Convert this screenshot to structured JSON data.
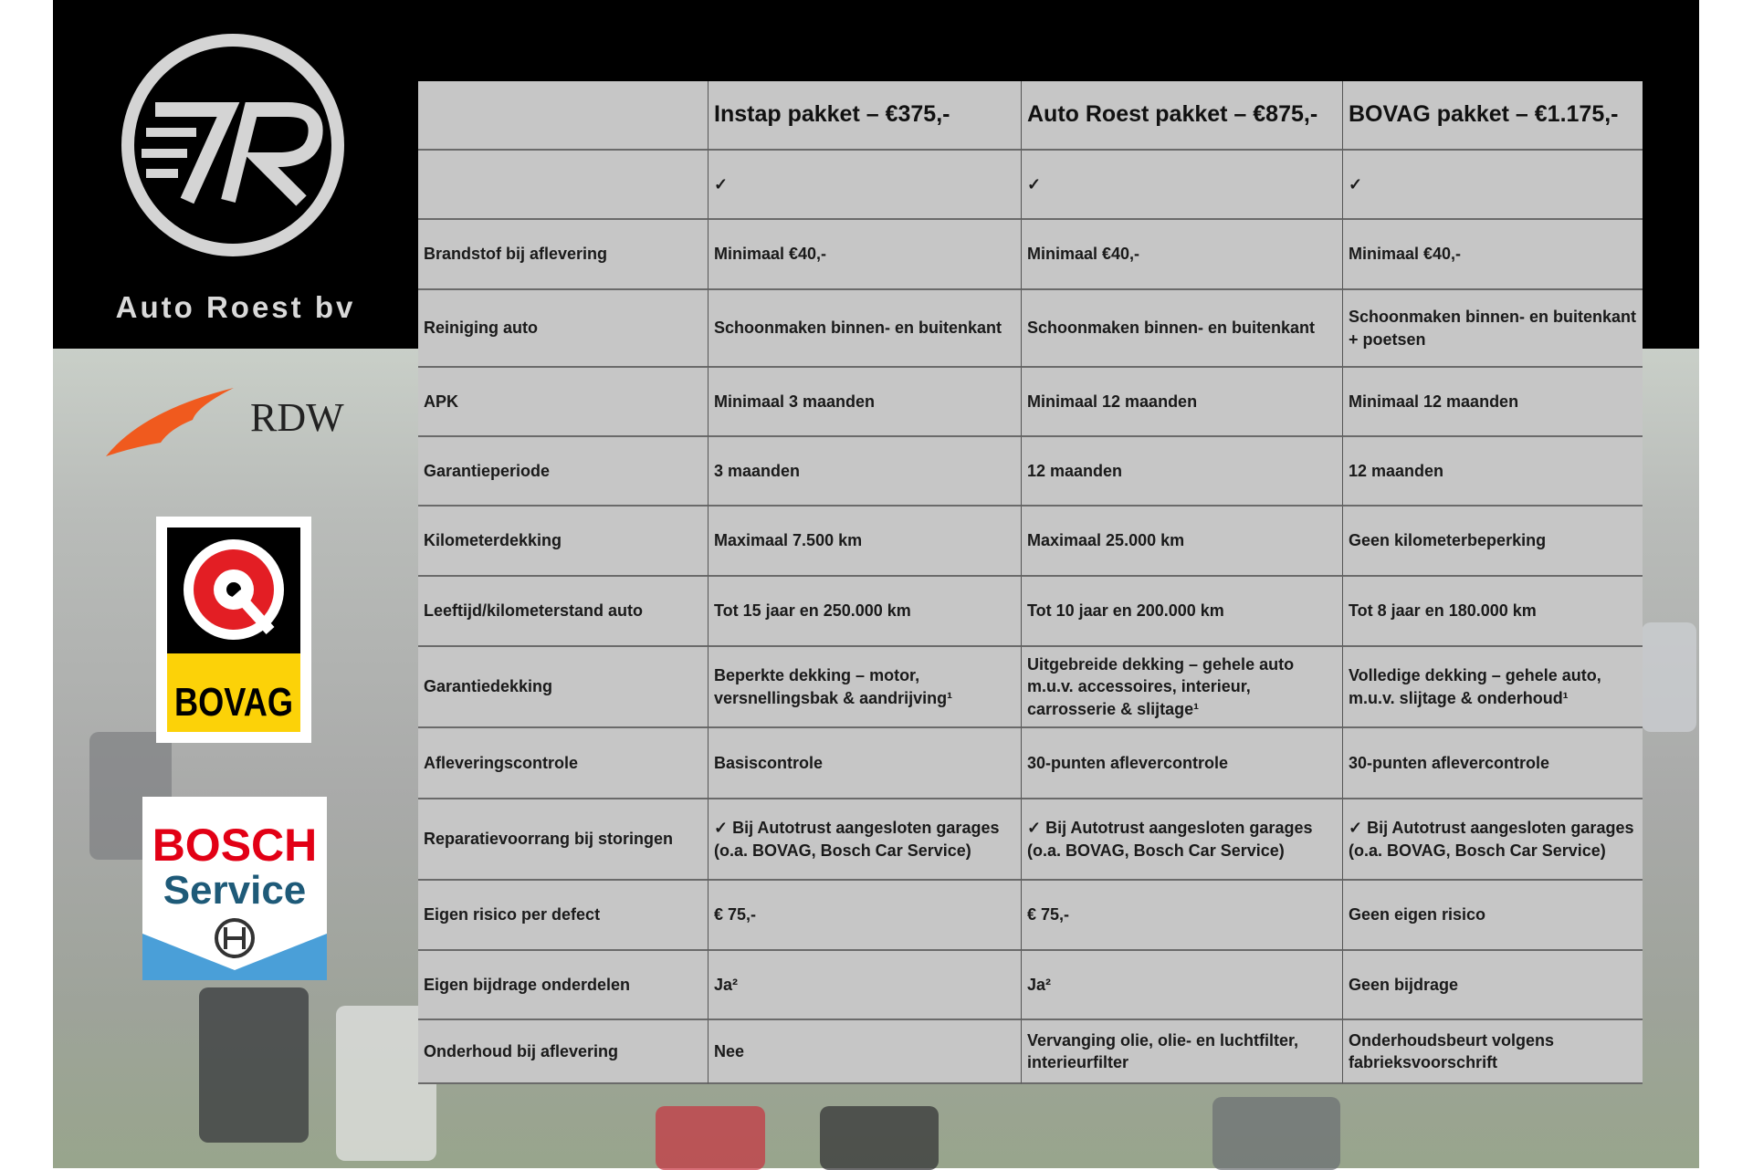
{
  "brand": {
    "name": "Auto Roest bv",
    "logo": "AR-circle-logo"
  },
  "partner_logos": [
    {
      "name": "RDW",
      "text": "RDW",
      "color": "#f05a1e"
    },
    {
      "name": "BOVAG",
      "text": "BOVAG",
      "color": "#fcd208"
    },
    {
      "name": "Bosch Service",
      "text": [
        "BOSCH",
        "Service"
      ],
      "colors": [
        "#e20015",
        "#1e5a78",
        "#4a9fd8"
      ]
    }
  ],
  "table": {
    "headers": [
      "",
      "Instap pakket – €375,-",
      "Auto Roest pakket – €875,-",
      "BOVAG pakket – €1.175,-"
    ],
    "rows": [
      [
        "",
        "✓",
        "✓",
        "✓"
      ],
      [
        "Brandstof bij aflevering",
        "Minimaal €40,-",
        "Minimaal €40,-",
        "Minimaal €40,-"
      ],
      [
        "Reiniging auto",
        "Schoonmaken binnen- en buitenkant",
        "Schoonmaken binnen- en buitenkant",
        "Schoonmaken binnen- en buitenkant + poetsen"
      ],
      [
        "APK",
        "Minimaal 3 maanden",
        "Minimaal 12 maanden",
        "Minimaal 12 maanden"
      ],
      [
        "Garantieperiode",
        "3 maanden",
        "12 maanden",
        "12 maanden"
      ],
      [
        "Kilometerdekking",
        "Maximaal 7.500 km",
        "Maximaal 25.000 km",
        "Geen kilometerbeperking"
      ],
      [
        "Leeftijd/kilometerstand auto",
        "Tot 15 jaar en 250.000 km",
        "Tot 10 jaar en 200.000 km",
        "Tot 8 jaar en 180.000 km"
      ],
      [
        "Garantiedekking",
        "Beperkte dekking – motor, versnellingsbak & aandrijving¹",
        "Uitgebreide dekking – gehele auto m.u.v. accessoires, interieur, carrosserie & slijtage¹",
        "Volledige dekking – gehele auto, m.u.v. slijtage & onderhoud¹"
      ],
      [
        "Afleveringscontrole",
        "Basiscontrole",
        "30-punten aflevercontrole",
        "30-punten aflevercontrole"
      ],
      [
        "Reparatievoorrang bij storingen",
        "✓ Bij Autotrust aangesloten garages (o.a. BOVAG, Bosch Car Service)",
        "✓ Bij Autotrust aangesloten garages (o.a. BOVAG, Bosch Car Service)",
        "✓ Bij Autotrust aangesloten garages (o.a. BOVAG, Bosch Car Service)"
      ],
      [
        "Eigen risico per defect",
        "€ 75,-",
        "€ 75,-",
        "Geen eigen risico"
      ],
      [
        "Eigen bijdrage onderdelen",
        "Ja²",
        "Ja²",
        "Geen bijdrage"
      ],
      [
        "Onderhoud bij aflevering",
        "Nee",
        "Vervanging olie, olie- en luchtfilter, interieurfilter",
        "Onderhoudsbeurt volgens fabrieksvoorschrift"
      ]
    ]
  }
}
